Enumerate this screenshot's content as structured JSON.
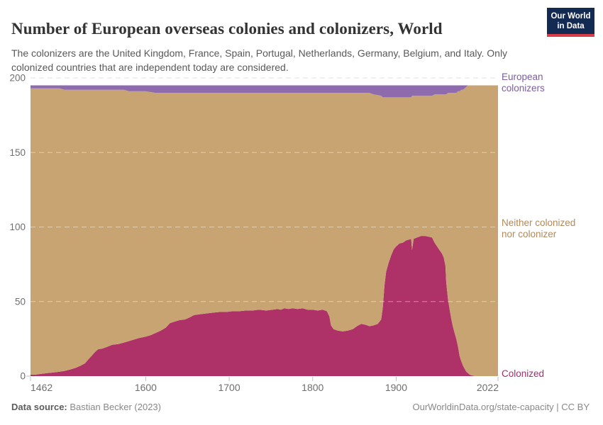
{
  "header": {
    "title": "Number of European overseas colonies and colonizers, World",
    "subtitle": "The colonizers are the United Kingdom, France, Spain, Portugal, Netherlands, Germany, Belgium, and Italy. Only\ncolonized countries that are independent today are considered.",
    "logo_line1": "Our World",
    "logo_line2": "in Data"
  },
  "entity_labels": {
    "colonizers": "European\ncolonizers",
    "neither": "Neither colonized\nnor colonizer",
    "colonized": "Colonized"
  },
  "footer": {
    "source_label": "Data source:",
    "source_value": " Bastian Becker (2023)",
    "credit": "OurWorldinData.org/state-capacity | CC BY"
  },
  "colors": {
    "colonized_fill": "#ae3168",
    "neither_fill": "#c9a473",
    "colonizers_fill": "#8d6bad",
    "colonized_label": "#a62a6d",
    "neither_label": "#b1895a",
    "colonizers_label": "#7c5e9e",
    "gridline_over_white": "#e0e0e0",
    "gridline_over_area": "rgba(255,255,255,0.45)",
    "tick": "#c0c0c0",
    "tick_label": "#6e6e6e"
  },
  "chart_data": {
    "type": "area",
    "stacked": true,
    "title": "Number of European overseas colonies and colonizers, World",
    "xlabel": "",
    "ylabel": "",
    "xlim": [
      1462,
      2022
    ],
    "ylim": [
      0,
      200
    ],
    "x_ticks": [
      1462,
      1600,
      1700,
      1800,
      1900,
      2022
    ],
    "y_ticks": [
      0,
      50,
      100,
      150,
      200
    ],
    "grid": "horizontal-dashed",
    "legend_position": "right-edge-entity-labels",
    "total_countries": 195,
    "x": [
      1462,
      1468,
      1475,
      1482,
      1490,
      1497,
      1503,
      1510,
      1516,
      1522,
      1527,
      1531,
      1535,
      1539,
      1543,
      1548,
      1553,
      1560,
      1567,
      1574,
      1580,
      1586,
      1592,
      1600,
      1606,
      1612,
      1618,
      1624,
      1629,
      1634,
      1640,
      1647,
      1653,
      1658,
      1665,
      1672,
      1680,
      1688,
      1696,
      1704,
      1712,
      1720,
      1728,
      1736,
      1744,
      1752,
      1758,
      1762,
      1766,
      1771,
      1776,
      1782,
      1788,
      1794,
      1800,
      1806,
      1812,
      1817,
      1820,
      1822,
      1825,
      1830,
      1836,
      1842,
      1848,
      1853,
      1858,
      1863,
      1868,
      1873,
      1878,
      1882,
      1884,
      1886,
      1888,
      1891,
      1894,
      1897,
      1900,
      1904,
      1908,
      1912,
      1915,
      1918,
      1919,
      1921,
      1925,
      1930,
      1935,
      1939,
      1943,
      1946,
      1949,
      1952,
      1955,
      1957,
      1959,
      1960,
      1962,
      1964,
      1966,
      1968,
      1970,
      1972,
      1974,
      1976,
      1978,
      1980,
      1982,
      1984,
      1986,
      1988,
      1990,
      1995,
      2005,
      2022
    ],
    "series": [
      {
        "name": "Colonized",
        "values": [
          1,
          1,
          1.5,
          2,
          2.5,
          3,
          3.5,
          4.5,
          5.5,
          7,
          8.5,
          11,
          13.5,
          16,
          18,
          18.5,
          19.5,
          21,
          21.5,
          22.5,
          23.5,
          24.5,
          25.5,
          26.5,
          27.5,
          29,
          30.5,
          32.5,
          35.5,
          36.5,
          37.5,
          38,
          39.5,
          41,
          41.5,
          42,
          42.5,
          43,
          43,
          43.5,
          43.5,
          44,
          44,
          44.5,
          44,
          44.5,
          45,
          44.5,
          45.5,
          45,
          45.5,
          45,
          45.5,
          44.5,
          44.5,
          44,
          44.5,
          43.5,
          40,
          34,
          31.5,
          30.5,
          30,
          30.5,
          31.5,
          33.5,
          35,
          34.5,
          33.5,
          34,
          35,
          38,
          46,
          61,
          70,
          76,
          81,
          85,
          87,
          89,
          89.5,
          91,
          91.5,
          92,
          84.5,
          92,
          93,
          94,
          94,
          93.5,
          93,
          89.5,
          87,
          84.5,
          82,
          79.5,
          74,
          63,
          52,
          45,
          38.5,
          33,
          29,
          25,
          20,
          13.5,
          10,
          7,
          5,
          3,
          2,
          1,
          0.5,
          0,
          0,
          0
        ]
      },
      {
        "name": "Neither colonized nor colonizer",
        "values": [
          192,
          192,
          191.5,
          191,
          190.5,
          190,
          188.5,
          187.5,
          186.5,
          185,
          183.5,
          181,
          178.5,
          176,
          174,
          173.5,
          172.5,
          171,
          170.5,
          169.5,
          167.5,
          166.5,
          165.5,
          164.5,
          163,
          161,
          159.5,
          157.5,
          154.5,
          153.5,
          152.5,
          152,
          150.5,
          149,
          148.5,
          148,
          147.5,
          147,
          147,
          146.5,
          146.5,
          146,
          146,
          145.5,
          146,
          145.5,
          145,
          145.5,
          144.5,
          145,
          144.5,
          145,
          144.5,
          145.5,
          145.5,
          146,
          145.5,
          146.5,
          150,
          156,
          158.5,
          159.5,
          160,
          159.5,
          158.5,
          156.5,
          155,
          155.5,
          156.5,
          155,
          153.5,
          150,
          141,
          126,
          117,
          111,
          106,
          102,
          100,
          98,
          97.5,
          96,
          95.5,
          95,
          103.5,
          96,
          95,
          94,
          94,
          94.5,
          95,
          99.5,
          102,
          104.5,
          107,
          109.5,
          115,
          126,
          138,
          145,
          151.5,
          157,
          161,
          165,
          171,
          177.5,
          182,
          185,
          188,
          191,
          193,
          194,
          194.5,
          195,
          195,
          195
        ]
      },
      {
        "name": "European colonizers",
        "values": [
          2,
          2,
          2,
          2,
          2,
          2,
          3,
          3,
          3,
          3,
          3,
          3,
          3,
          3,
          3,
          3,
          3,
          3,
          3,
          3,
          4,
          4,
          4,
          4,
          4.5,
          5,
          5,
          5,
          5,
          5,
          5,
          5,
          5,
          5,
          5,
          5,
          5,
          5,
          5,
          5,
          5,
          5,
          5,
          5,
          5,
          5,
          5,
          5,
          5,
          5,
          5,
          5,
          5,
          5,
          5,
          5,
          5,
          5,
          5,
          5,
          5,
          5,
          5,
          5,
          5,
          5,
          5,
          5,
          5,
          6,
          6.5,
          7,
          8,
          8,
          8,
          8,
          8,
          8,
          8,
          8,
          8,
          8,
          8,
          8,
          7,
          7,
          7,
          7,
          7,
          7,
          7,
          6,
          6,
          6,
          6,
          6,
          6,
          6,
          5,
          5,
          5,
          5,
          5,
          5,
          4,
          4,
          3,
          3,
          2,
          1,
          0,
          0,
          0,
          0,
          0,
          0
        ]
      }
    ]
  }
}
